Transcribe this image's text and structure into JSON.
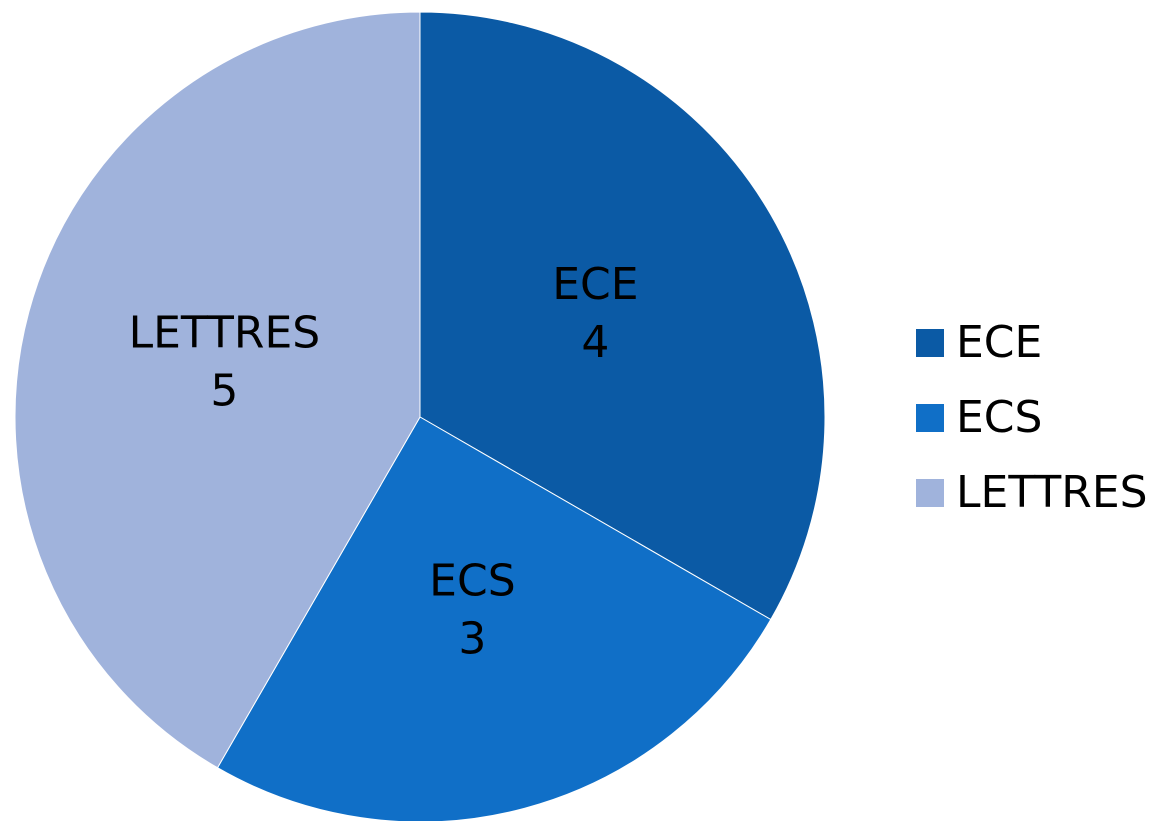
{
  "chart_data": {
    "type": "pie",
    "categories": [
      "ECE",
      "ECS",
      "LETTRES"
    ],
    "values": [
      4,
      3,
      5
    ],
    "colors": [
      "#0b5aa5",
      "#106fc7",
      "#a0b3dc"
    ],
    "legend": "right"
  }
}
